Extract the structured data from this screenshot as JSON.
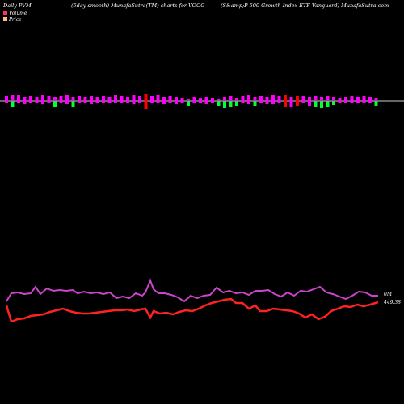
{
  "header": {
    "left": "Daily PVM",
    "center": "(5day smooth) MunafaSutra(TM) charts for VOOG",
    "right": "(S&amp;P 500  Growth Index ETF Vanguard) MunafaSutra.com"
  },
  "legend": {
    "items": [
      {
        "label": "Volume",
        "color": "#ff3366"
      },
      {
        "label": "Price",
        "color": "#ffbb88"
      }
    ]
  },
  "colors": {
    "background": "#000000",
    "baseline": "#cccccc",
    "bar_up": "#ff00ff",
    "bar_down": "#00ff33",
    "bar_red": "#ff0000",
    "volume_line": "#cc44cc",
    "price_line": "#ff2222"
  },
  "chart_data": {
    "type": "bar",
    "bars": [
      {
        "up": 6,
        "down": 3,
        "color": "bar_up"
      },
      {
        "up": 7,
        "down": 8,
        "color": "bar_down"
      },
      {
        "up": 7,
        "down": 3,
        "color": "bar_up"
      },
      {
        "up": 5,
        "down": 4,
        "color": "bar_up"
      },
      {
        "up": 6,
        "down": 3,
        "color": "bar_up"
      },
      {
        "up": 5,
        "down": 3,
        "color": "bar_up"
      },
      {
        "up": 7,
        "down": 4,
        "color": "bar_up"
      },
      {
        "up": 6,
        "down": 3,
        "color": "bar_up"
      },
      {
        "up": 5,
        "down": 8,
        "color": "bar_down"
      },
      {
        "up": 6,
        "down": 3,
        "color": "bar_up"
      },
      {
        "up": 7,
        "down": 4,
        "color": "bar_up"
      },
      {
        "up": 5,
        "down": 7,
        "color": "bar_down"
      },
      {
        "up": 6,
        "down": 3,
        "color": "bar_up"
      },
      {
        "up": 5,
        "down": 3,
        "color": "bar_up"
      },
      {
        "up": 6,
        "down": 4,
        "color": "bar_up"
      },
      {
        "up": 5,
        "down": 3,
        "color": "bar_up"
      },
      {
        "up": 6,
        "down": 3,
        "color": "bar_up"
      },
      {
        "up": 5,
        "down": 3,
        "color": "bar_up"
      },
      {
        "up": 7,
        "down": 3,
        "color": "bar_up"
      },
      {
        "up": 6,
        "down": 3,
        "color": "bar_up"
      },
      {
        "up": 5,
        "down": 3,
        "color": "bar_up"
      },
      {
        "up": 7,
        "down": 4,
        "color": "bar_up"
      },
      {
        "up": 6,
        "down": 3,
        "color": "bar_up"
      },
      {
        "up": 9,
        "down": 10,
        "color": "bar_red"
      },
      {
        "up": 6,
        "down": 3,
        "color": "bar_up"
      },
      {
        "up": 7,
        "down": 3,
        "color": "bar_up"
      },
      {
        "up": 5,
        "down": 4,
        "color": "bar_up"
      },
      {
        "up": 6,
        "down": 3,
        "color": "bar_up"
      },
      {
        "up": 5,
        "down": 4,
        "color": "bar_up"
      },
      {
        "up": 4,
        "down": 3,
        "color": "bar_up"
      },
      {
        "up": 3,
        "down": 6,
        "color": "bar_down"
      },
      {
        "up": 5,
        "down": 3,
        "color": "bar_up"
      },
      {
        "up": 4,
        "down": 3,
        "color": "bar_up"
      },
      {
        "up": 5,
        "down": 4,
        "color": "bar_up"
      },
      {
        "up": 4,
        "down": 3,
        "color": "bar_up"
      },
      {
        "up": 3,
        "down": 6,
        "color": "bar_down"
      },
      {
        "up": 5,
        "down": 9,
        "color": "bar_down"
      },
      {
        "up": 6,
        "down": 8,
        "color": "bar_down"
      },
      {
        "up": 4,
        "down": 6,
        "color": "bar_down"
      },
      {
        "up": 6,
        "down": 3,
        "color": "bar_up"
      },
      {
        "up": 7,
        "down": 4,
        "color": "bar_up"
      },
      {
        "up": 5,
        "down": 6,
        "color": "bar_down"
      },
      {
        "up": 6,
        "down": 3,
        "color": "bar_up"
      },
      {
        "up": 5,
        "down": 4,
        "color": "bar_up"
      },
      {
        "up": 7,
        "down": 4,
        "color": "bar_up"
      },
      {
        "up": 6,
        "down": 3,
        "color": "bar_up"
      },
      {
        "up": 7,
        "down": 8,
        "color": "bar_red"
      },
      {
        "up": 5,
        "down": 7,
        "color": "bar_up"
      },
      {
        "up": 6,
        "down": 6,
        "color": "bar_red"
      },
      {
        "up": 6,
        "down": 3,
        "color": "bar_up"
      },
      {
        "up": 5,
        "down": 6,
        "color": "bar_up"
      },
      {
        "up": 6,
        "down": 8,
        "color": "bar_down"
      },
      {
        "up": 5,
        "down": 9,
        "color": "bar_down"
      },
      {
        "up": 6,
        "down": 8,
        "color": "bar_down"
      },
      {
        "up": 5,
        "down": 5,
        "color": "bar_down"
      },
      {
        "up": 4,
        "down": 3,
        "color": "bar_up"
      },
      {
        "up": 5,
        "down": 3,
        "color": "bar_up"
      },
      {
        "up": 6,
        "down": 3,
        "color": "bar_up"
      },
      {
        "up": 5,
        "down": 3,
        "color": "bar_up"
      },
      {
        "up": 6,
        "down": 3,
        "color": "bar_up"
      },
      {
        "up": 5,
        "down": 3,
        "color": "bar_up"
      },
      {
        "up": 4,
        "down": 6,
        "color": "bar_down"
      }
    ],
    "volume_series": [
      {
        "x": 8,
        "y": 373
      },
      {
        "x": 14,
        "y": 363
      },
      {
        "x": 22,
        "y": 362
      },
      {
        "x": 30,
        "y": 364
      },
      {
        "x": 38,
        "y": 363
      },
      {
        "x": 44,
        "y": 355
      },
      {
        "x": 50,
        "y": 364
      },
      {
        "x": 58,
        "y": 357
      },
      {
        "x": 66,
        "y": 360
      },
      {
        "x": 74,
        "y": 359
      },
      {
        "x": 82,
        "y": 360
      },
      {
        "x": 90,
        "y": 359
      },
      {
        "x": 96,
        "y": 363
      },
      {
        "x": 104,
        "y": 361
      },
      {
        "x": 112,
        "y": 363
      },
      {
        "x": 120,
        "y": 362
      },
      {
        "x": 128,
        "y": 364
      },
      {
        "x": 136,
        "y": 362
      },
      {
        "x": 144,
        "y": 369
      },
      {
        "x": 152,
        "y": 367
      },
      {
        "x": 160,
        "y": 369
      },
      {
        "x": 168,
        "y": 363
      },
      {
        "x": 176,
        "y": 366
      },
      {
        "x": 180,
        "y": 362
      },
      {
        "x": 186,
        "y": 347
      },
      {
        "x": 190,
        "y": 358
      },
      {
        "x": 196,
        "y": 363
      },
      {
        "x": 204,
        "y": 363
      },
      {
        "x": 212,
        "y": 365
      },
      {
        "x": 220,
        "y": 368
      },
      {
        "x": 228,
        "y": 373
      },
      {
        "x": 236,
        "y": 366
      },
      {
        "x": 244,
        "y": 369
      },
      {
        "x": 252,
        "y": 366
      },
      {
        "x": 260,
        "y": 365
      },
      {
        "x": 268,
        "y": 356
      },
      {
        "x": 276,
        "y": 362
      },
      {
        "x": 284,
        "y": 360
      },
      {
        "x": 292,
        "y": 363
      },
      {
        "x": 300,
        "y": 362
      },
      {
        "x": 308,
        "y": 365
      },
      {
        "x": 316,
        "y": 360
      },
      {
        "x": 324,
        "y": 360
      },
      {
        "x": 332,
        "y": 359
      },
      {
        "x": 340,
        "y": 364
      },
      {
        "x": 348,
        "y": 367
      },
      {
        "x": 356,
        "y": 362
      },
      {
        "x": 364,
        "y": 366
      },
      {
        "x": 372,
        "y": 360
      },
      {
        "x": 380,
        "y": 361
      },
      {
        "x": 388,
        "y": 358
      },
      {
        "x": 396,
        "y": 355
      },
      {
        "x": 404,
        "y": 362
      },
      {
        "x": 412,
        "y": 364
      },
      {
        "x": 420,
        "y": 367
      },
      {
        "x": 428,
        "y": 370
      },
      {
        "x": 436,
        "y": 366
      },
      {
        "x": 444,
        "y": 361
      },
      {
        "x": 452,
        "y": 362
      },
      {
        "x": 460,
        "y": 366
      },
      {
        "x": 468,
        "y": 366
      }
    ],
    "price_series": [
      {
        "x": 8,
        "y": 378
      },
      {
        "x": 14,
        "y": 398
      },
      {
        "x": 22,
        "y": 395
      },
      {
        "x": 30,
        "y": 394
      },
      {
        "x": 38,
        "y": 391
      },
      {
        "x": 46,
        "y": 390
      },
      {
        "x": 54,
        "y": 389
      },
      {
        "x": 62,
        "y": 386
      },
      {
        "x": 70,
        "y": 384
      },
      {
        "x": 78,
        "y": 382
      },
      {
        "x": 86,
        "y": 385
      },
      {
        "x": 94,
        "y": 387
      },
      {
        "x": 102,
        "y": 388
      },
      {
        "x": 110,
        "y": 388
      },
      {
        "x": 118,
        "y": 387
      },
      {
        "x": 126,
        "y": 386
      },
      {
        "x": 134,
        "y": 385
      },
      {
        "x": 142,
        "y": 384
      },
      {
        "x": 150,
        "y": 384
      },
      {
        "x": 158,
        "y": 383
      },
      {
        "x": 166,
        "y": 385
      },
      {
        "x": 174,
        "y": 383
      },
      {
        "x": 180,
        "y": 382
      },
      {
        "x": 186,
        "y": 393
      },
      {
        "x": 190,
        "y": 385
      },
      {
        "x": 198,
        "y": 388
      },
      {
        "x": 206,
        "y": 387
      },
      {
        "x": 214,
        "y": 389
      },
      {
        "x": 222,
        "y": 386
      },
      {
        "x": 230,
        "y": 384
      },
      {
        "x": 238,
        "y": 385
      },
      {
        "x": 246,
        "y": 382
      },
      {
        "x": 254,
        "y": 378
      },
      {
        "x": 262,
        "y": 375
      },
      {
        "x": 270,
        "y": 373
      },
      {
        "x": 278,
        "y": 371
      },
      {
        "x": 286,
        "y": 370
      },
      {
        "x": 292,
        "y": 375
      },
      {
        "x": 300,
        "y": 375
      },
      {
        "x": 308,
        "y": 382
      },
      {
        "x": 316,
        "y": 378
      },
      {
        "x": 322,
        "y": 385
      },
      {
        "x": 330,
        "y": 385
      },
      {
        "x": 338,
        "y": 382
      },
      {
        "x": 346,
        "y": 383
      },
      {
        "x": 354,
        "y": 384
      },
      {
        "x": 362,
        "y": 385
      },
      {
        "x": 370,
        "y": 388
      },
      {
        "x": 378,
        "y": 393
      },
      {
        "x": 386,
        "y": 389
      },
      {
        "x": 394,
        "y": 395
      },
      {
        "x": 402,
        "y": 392
      },
      {
        "x": 410,
        "y": 385
      },
      {
        "x": 418,
        "y": 382
      },
      {
        "x": 426,
        "y": 379
      },
      {
        "x": 434,
        "y": 380
      },
      {
        "x": 442,
        "y": 377
      },
      {
        "x": 450,
        "y": 379
      },
      {
        "x": 458,
        "y": 377
      },
      {
        "x": 468,
        "y": 374
      }
    ],
    "end_labels": {
      "volume": "0M",
      "price": "449.38"
    }
  }
}
